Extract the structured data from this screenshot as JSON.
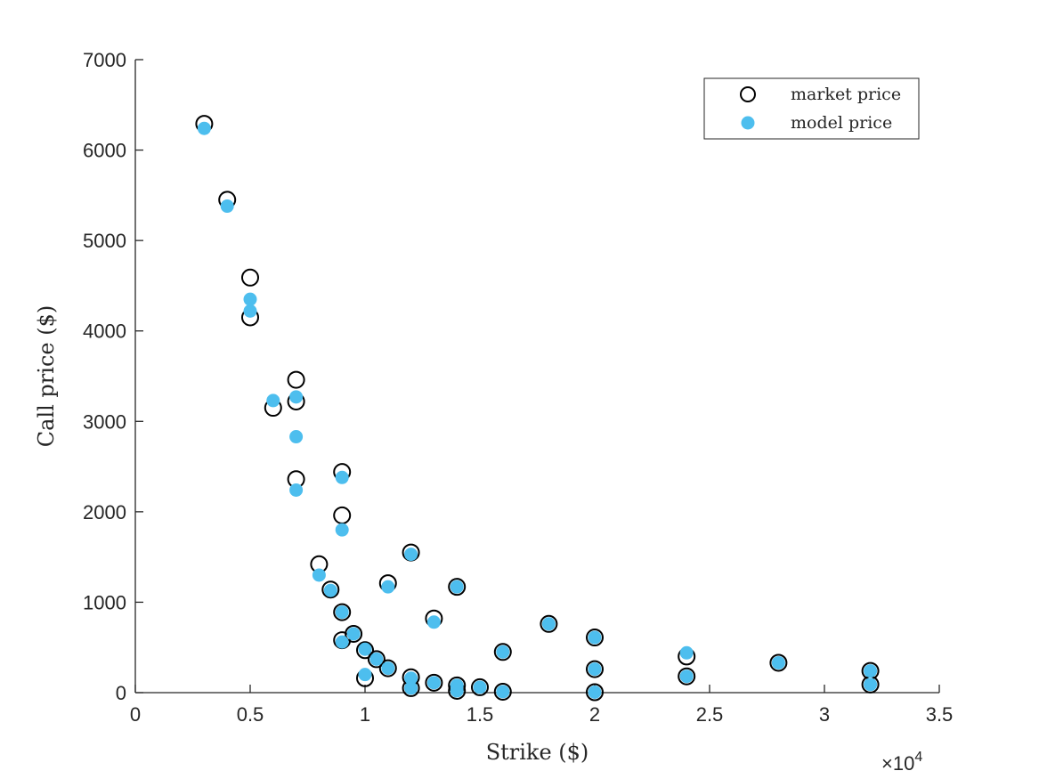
{
  "chart_data": {
    "type": "scatter",
    "title": "",
    "xlabel": "Strike ($)",
    "ylabel": "Call price ($)",
    "xlim": [
      0,
      35000
    ],
    "ylim": [
      0,
      7000
    ],
    "x_scale_note": "×10",
    "x_scale_exponent": "4",
    "x_ticks": [
      0,
      5000,
      10000,
      15000,
      20000,
      25000,
      30000,
      35000
    ],
    "x_tick_labels": [
      "0",
      "0.5",
      "1",
      "1.5",
      "2",
      "2.5",
      "3",
      "3.5"
    ],
    "y_ticks": [
      0,
      1000,
      2000,
      3000,
      4000,
      5000,
      6000,
      7000
    ],
    "y_tick_labels": [
      "0",
      "1000",
      "2000",
      "3000",
      "4000",
      "5000",
      "6000",
      "7000"
    ],
    "grid": false,
    "legend_position": "top-right",
    "series": [
      {
        "name": "market price",
        "marker": "open-circle",
        "color": "#000000",
        "points": [
          [
            3000,
            6290
          ],
          [
            4000,
            5450
          ],
          [
            5000,
            4590
          ],
          [
            5000,
            4150
          ],
          [
            6000,
            3150
          ],
          [
            7000,
            3460
          ],
          [
            7000,
            3220
          ],
          [
            7000,
            2360
          ],
          [
            8000,
            1420
          ],
          [
            8500,
            1140
          ],
          [
            9000,
            2440
          ],
          [
            9000,
            1960
          ],
          [
            9000,
            890
          ],
          [
            9000,
            580
          ],
          [
            9500,
            650
          ],
          [
            10000,
            470
          ],
          [
            10000,
            160
          ],
          [
            10500,
            370
          ],
          [
            11000,
            1210
          ],
          [
            11000,
            270
          ],
          [
            12000,
            1550
          ],
          [
            12000,
            170
          ],
          [
            12000,
            50
          ],
          [
            13000,
            820
          ],
          [
            13000,
            110
          ],
          [
            14000,
            1170
          ],
          [
            14000,
            80
          ],
          [
            14000,
            20
          ],
          [
            15000,
            60
          ],
          [
            16000,
            450
          ],
          [
            16000,
            10
          ],
          [
            18000,
            760
          ],
          [
            20000,
            610
          ],
          [
            20000,
            260
          ],
          [
            20000,
            5
          ],
          [
            24000,
            400
          ],
          [
            24000,
            180
          ],
          [
            28000,
            330
          ],
          [
            32000,
            240
          ],
          [
            32000,
            90
          ]
        ]
      },
      {
        "name": "model price",
        "marker": "filled-circle",
        "color": "#4dbeee",
        "points": [
          [
            3000,
            6240
          ],
          [
            4000,
            5380
          ],
          [
            5000,
            4350
          ],
          [
            5000,
            4220
          ],
          [
            6000,
            3230
          ],
          [
            7000,
            3270
          ],
          [
            7000,
            2830
          ],
          [
            7000,
            2240
          ],
          [
            8000,
            1300
          ],
          [
            8500,
            1130
          ],
          [
            9000,
            2380
          ],
          [
            9000,
            1800
          ],
          [
            9000,
            890
          ],
          [
            9000,
            560
          ],
          [
            9500,
            650
          ],
          [
            10000,
            480
          ],
          [
            10000,
            200
          ],
          [
            10500,
            370
          ],
          [
            11000,
            1170
          ],
          [
            11000,
            270
          ],
          [
            12000,
            1530
          ],
          [
            12000,
            160
          ],
          [
            12000,
            50
          ],
          [
            13000,
            780
          ],
          [
            13000,
            110
          ],
          [
            14000,
            1170
          ],
          [
            14000,
            80
          ],
          [
            14000,
            20
          ],
          [
            15000,
            60
          ],
          [
            16000,
            450
          ],
          [
            16000,
            10
          ],
          [
            18000,
            760
          ],
          [
            20000,
            610
          ],
          [
            20000,
            260
          ],
          [
            20000,
            5
          ],
          [
            24000,
            440
          ],
          [
            24000,
            180
          ],
          [
            28000,
            330
          ],
          [
            32000,
            240
          ],
          [
            32000,
            90
          ]
        ]
      }
    ]
  }
}
